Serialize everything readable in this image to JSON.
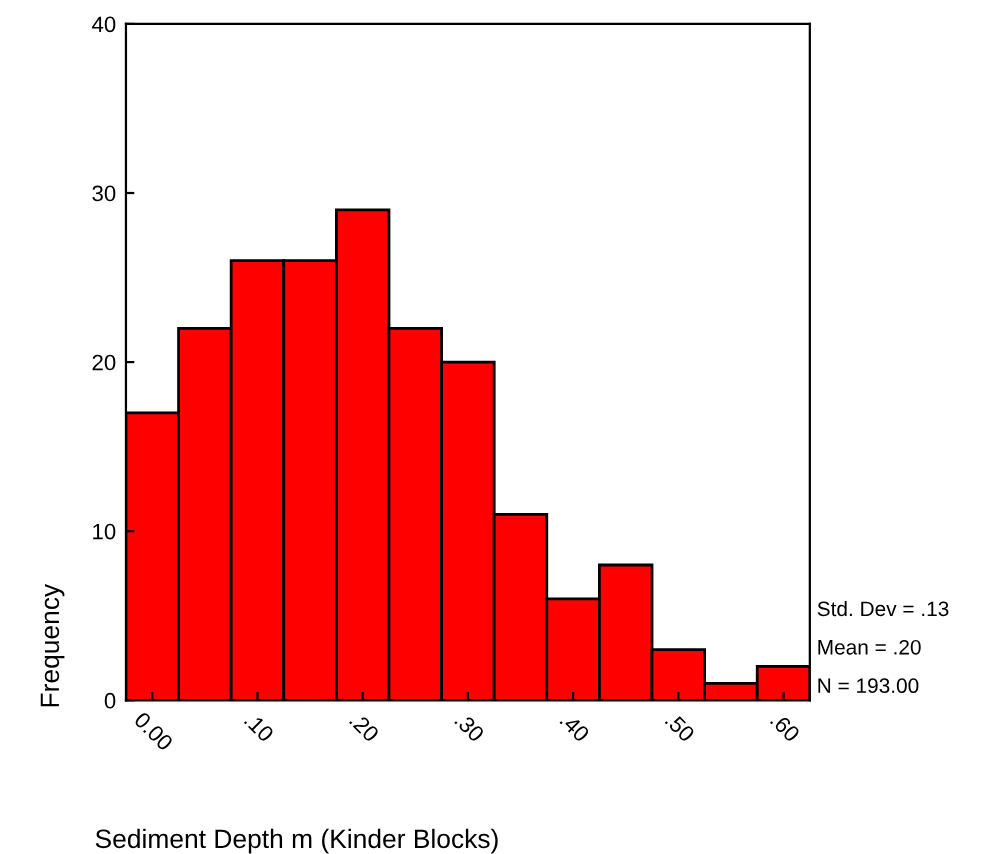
{
  "chart_data": {
    "type": "histogram",
    "xlabel": "Sediment Depth m (Kinder Blocks)",
    "ylabel": "Frequency",
    "bins": [
      -0.025,
      0.025,
      0.075,
      0.125,
      0.175,
      0.225,
      0.275,
      0.325,
      0.375,
      0.425,
      0.475,
      0.525,
      0.575,
      0.625
    ],
    "values": [
      17,
      22,
      26,
      26,
      29,
      22,
      20,
      11,
      6,
      8,
      3,
      1,
      2
    ],
    "color": "#ff0000",
    "xlim": [
      -0.025,
      0.625
    ],
    "xticks": [
      {
        "value": 0.0,
        "label": "0.00"
      },
      {
        "value": 0.1,
        "label": ".10"
      },
      {
        "value": 0.2,
        "label": ".20"
      },
      {
        "value": 0.3,
        "label": ".30"
      },
      {
        "value": 0.4,
        "label": ".40"
      },
      {
        "value": 0.5,
        "label": ".50"
      },
      {
        "value": 0.6,
        "label": ".60"
      }
    ],
    "ylim": [
      0,
      40
    ],
    "yticks": [
      0,
      10,
      20,
      30,
      40
    ],
    "grid": false,
    "legend": false,
    "annotations": [
      "Std. Dev = .13",
      "Mean = .20",
      "N = 193.00"
    ]
  }
}
